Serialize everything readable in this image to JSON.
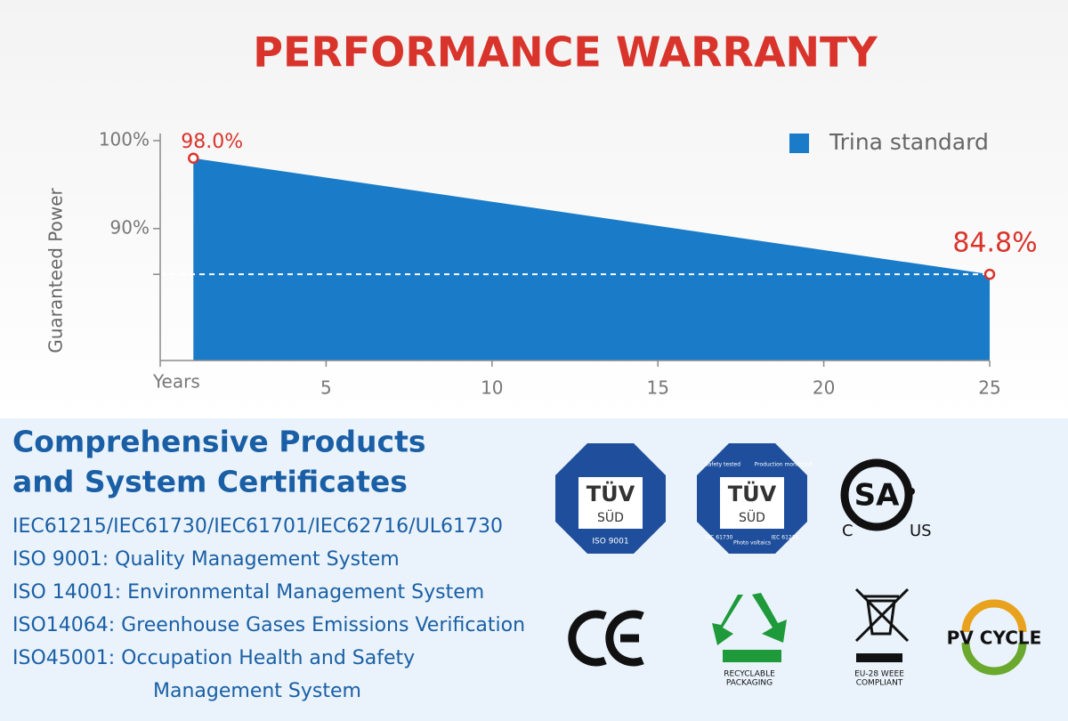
{
  "chart_data": {
    "type": "area",
    "title": "PERFORMANCE WARRANTY",
    "ylabel": "Guaranteed Power",
    "x": [
      1,
      25
    ],
    "series": [
      {
        "name": "Trina standard",
        "color": "#1a7cc8",
        "values": [
          98.0,
          84.8
        ],
        "value_labels": [
          "98.0%",
          "84.8%"
        ]
      }
    ],
    "xlim": [
      0,
      25
    ],
    "xticks": [
      {
        "value": 0,
        "label": "Years"
      },
      5,
      10,
      15,
      20,
      25
    ],
    "ylim": [
      75,
      100
    ],
    "yticks": [
      {
        "value": 100,
        "label": "100%"
      },
      {
        "value": 90,
        "label": "90%"
      }
    ],
    "legend": "top-right",
    "marker_color": "#d9342b"
  },
  "certificates": {
    "heading": [
      "Comprehensive Products",
      "and System Certificates"
    ],
    "lines": [
      "IEC61215/IEC61730/IEC61701/IEC62716/UL61730",
      "ISO 9001:  Quality Management System",
      "ISO 14001:  Environmental Management System",
      "ISO14064:  Greenhouse Gases Emissions Verification",
      "ISO45001:  Occupation Health and Safety",
      "Management System"
    ],
    "logos": {
      "tuv1": [
        "TÜV",
        "SÜD",
        "ISO 9001"
      ],
      "tuv2": [
        "TÜV",
        "SÜD",
        "Safety tested",
        "Production monitored",
        "IEC 61730",
        "Photo voltaics",
        "IEC 61215"
      ],
      "csa": [
        "C",
        "US"
      ],
      "recycle": [
        "RECYCLABLE",
        "PACKAGING"
      ],
      "weee": [
        "EU-28 WEEE",
        "COMPLIANT"
      ],
      "pvcycle": "PV CYCLE"
    }
  }
}
